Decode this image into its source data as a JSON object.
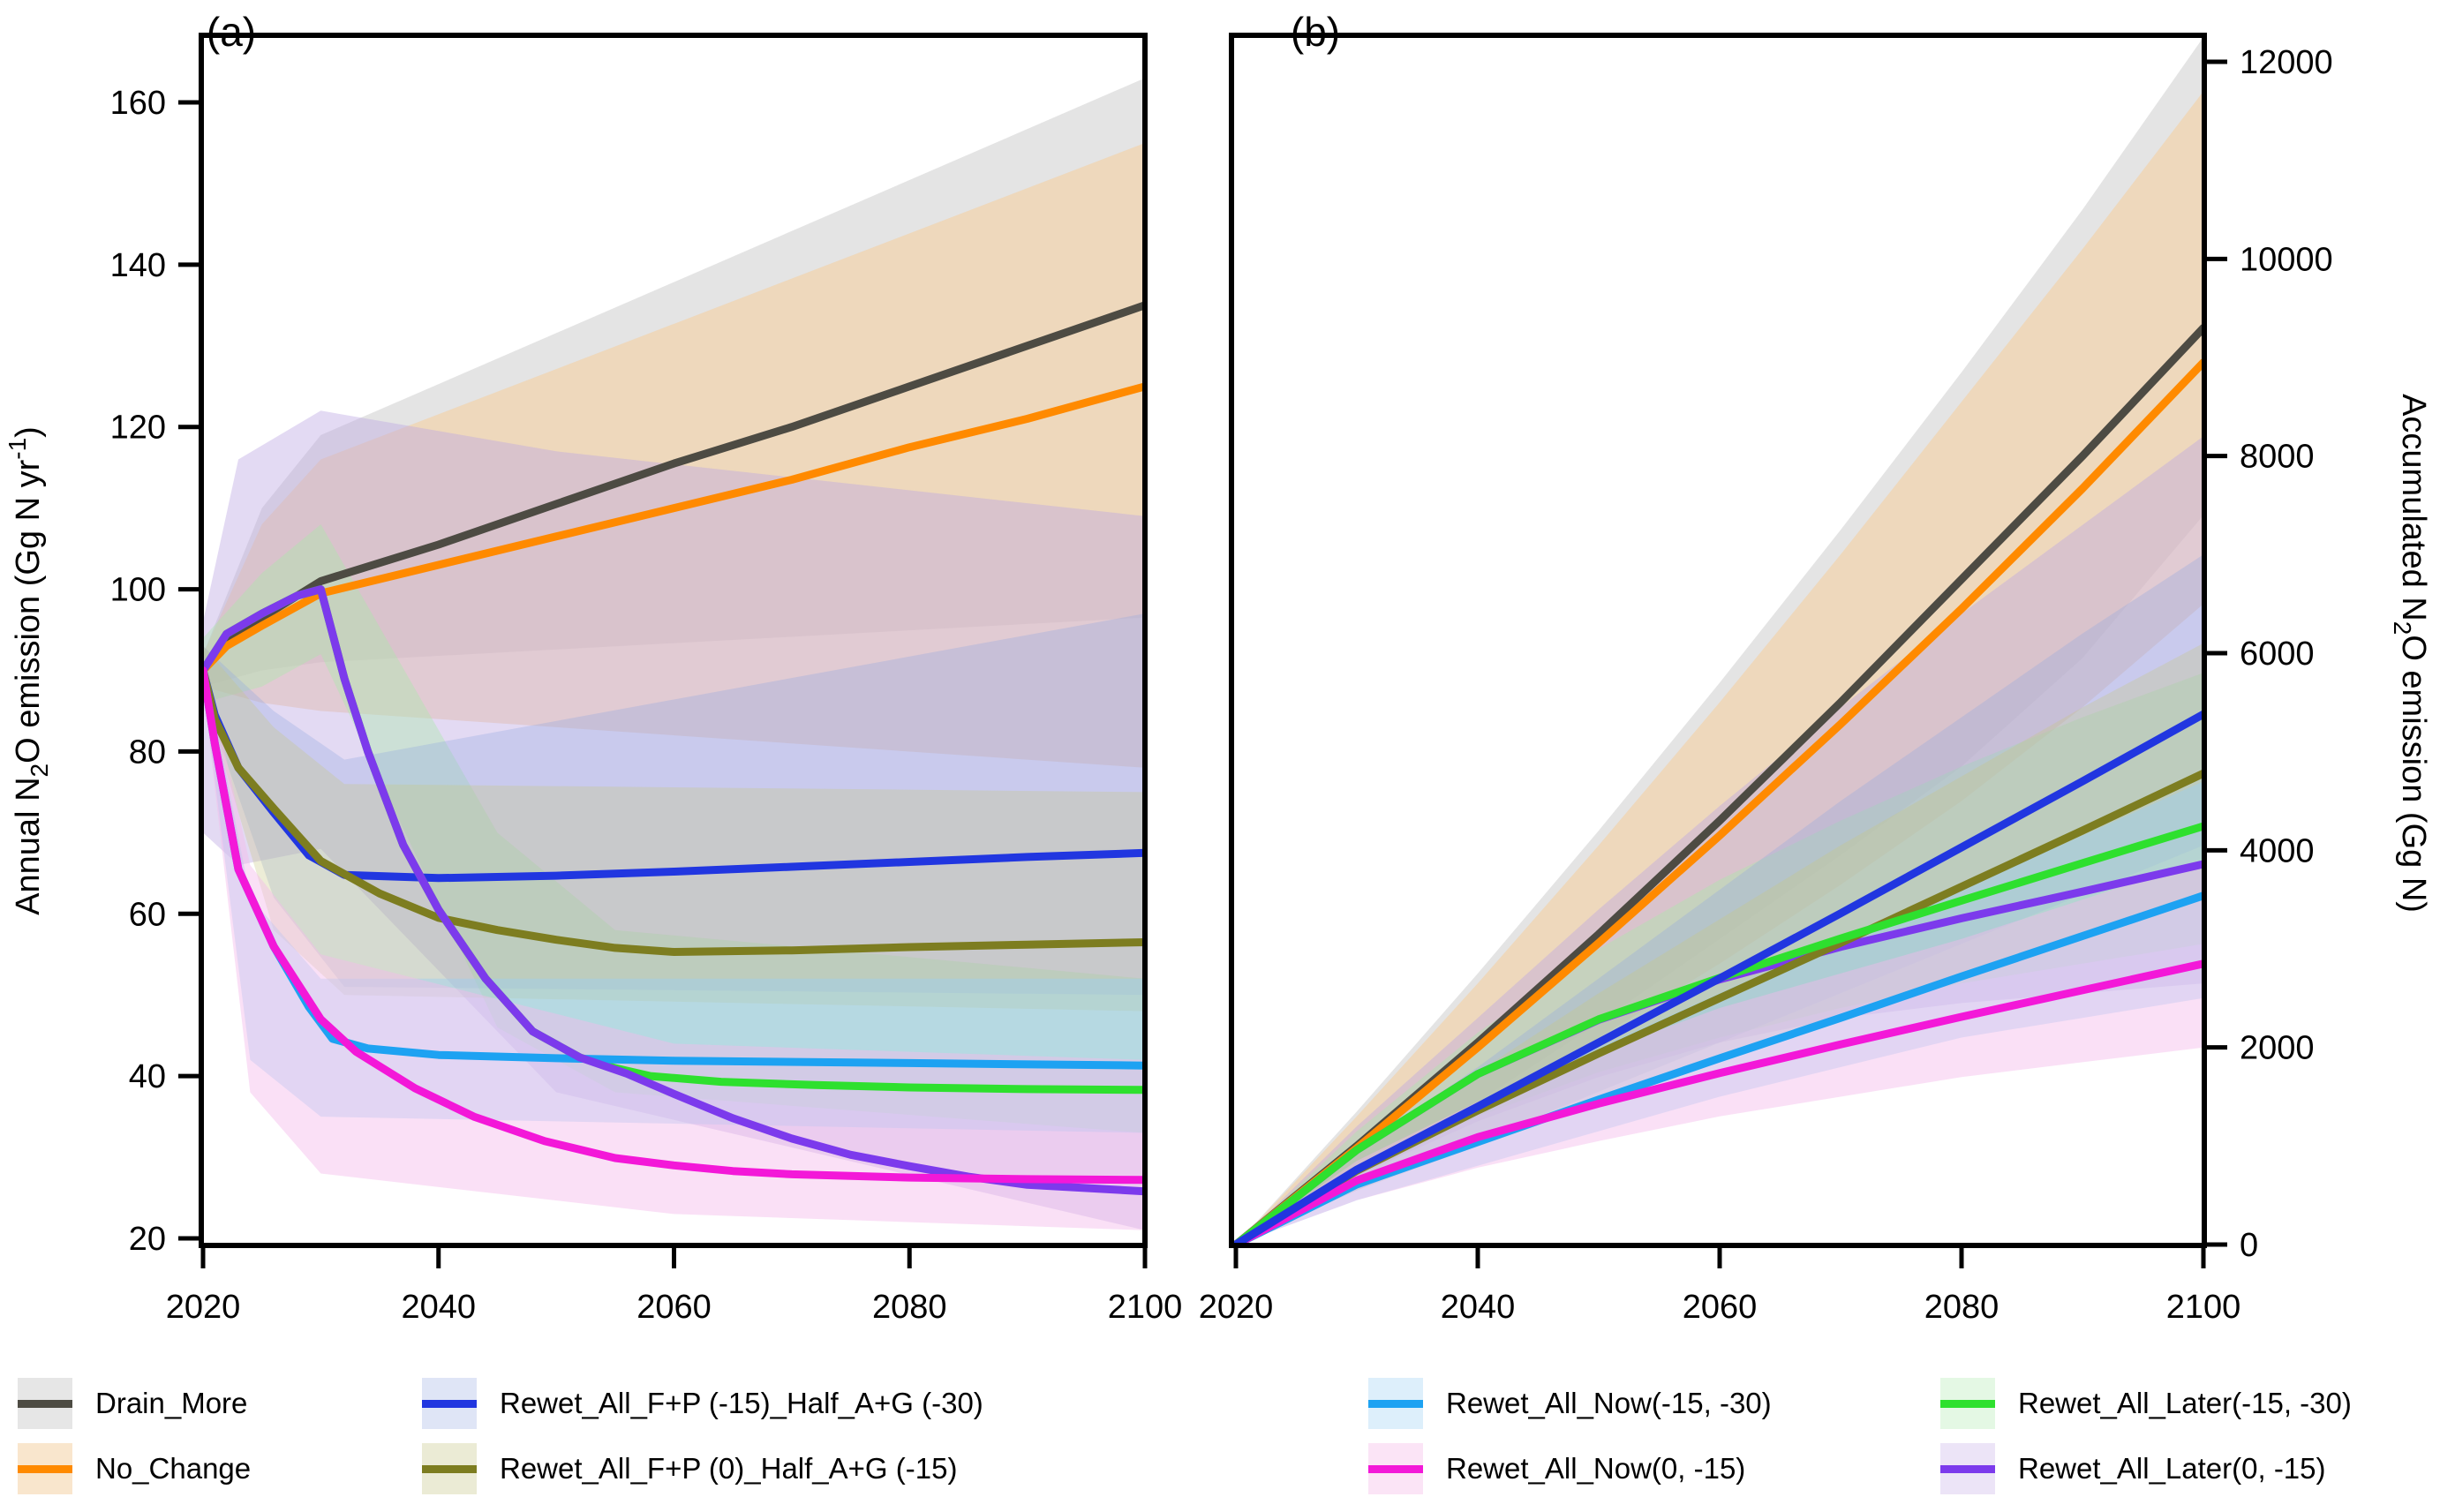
{
  "scenarios": {
    "drain_more": {
      "label": "Drain_More",
      "color": "#4d4b43",
      "band": "rgba(185,185,185,0.38)",
      "legend_band": "#e6e6e6"
    },
    "no_change": {
      "label": "No_Change",
      "color": "#ff8a00",
      "band": "rgba(247,203,147,0.50)",
      "legend_band": "#f9e6cd"
    },
    "fp15": {
      "label": "Rewet_All_F+P (-15)_Half_A+G (-30)",
      "color": "#2136e0",
      "band": "rgba(145,168,224,0.32)",
      "legend_band": "#dfe5f6"
    },
    "fp0": {
      "label": "Rewet_All_F+P (0)_Half_A+G (-15)",
      "color": "#7d7d20",
      "band": "rgba(198,198,132,0.32)",
      "legend_band": "#ebebd5"
    },
    "now1530": {
      "label": "Rewet_All_Now(-15, -30)",
      "color": "#1da2f2",
      "band": "rgba(152,208,242,0.42)",
      "legend_band": "#ddeffb"
    },
    "now015": {
      "label": "Rewet_All_Now(0, -15)",
      "color": "#f318d8",
      "band": "rgba(243,186,234,0.45)",
      "legend_band": "#fbe4f6"
    },
    "later1530": {
      "label": "Rewet_All_Later(-15, -30)",
      "color": "#2ee02e",
      "band": "rgba(168,234,168,0.38)",
      "legend_band": "#e4f8e4"
    },
    "later015": {
      "label": "Rewet_All_Later(0, -15)",
      "color": "#7c3aec",
      "band": "rgba(188,168,226,0.42)",
      "legend_band": "#ece4f7"
    }
  },
  "legend": {
    "order": [
      "drain_more",
      "fp15",
      "now1530",
      "later1530",
      "no_change",
      "fp0",
      "now015",
      "later015"
    ]
  },
  "chart_data": [
    {
      "id": "a",
      "type": "line",
      "title": "(a)",
      "ylabel": "Annual N2O emission (Gg N yr-1)",
      "ylabel_segments": [
        {
          "t": "Annual N"
        },
        {
          "t": "2",
          "s": "sub"
        },
        {
          "t": "O emission (Gg N yr"
        },
        {
          "t": "-1",
          "s": "sup"
        },
        {
          "t": ")"
        }
      ],
      "xlim": [
        2020,
        2100
      ],
      "ylim": [
        20,
        160
      ],
      "xticks": [
        2020,
        2040,
        2060,
        2080,
        2100
      ],
      "yticks": [
        20,
        40,
        60,
        80,
        100,
        120,
        140,
        160
      ],
      "yaxis_side": "left",
      "grid": false,
      "band_order": [
        "drain_more",
        "no_change",
        "later015",
        "later1530",
        "fp15",
        "fp0",
        "now1530",
        "now015"
      ],
      "line_order": [
        "drain_more",
        "no_change",
        "fp15",
        "fp0",
        "later1530",
        "now1530",
        "later015",
        "now015"
      ],
      "bands": {
        "drain_more": {
          "x": [
            2020,
            2025,
            2030,
            2100
          ],
          "upper": [
            92,
            110,
            119,
            163
          ],
          "lower": [
            88,
            90,
            91,
            96.5
          ]
        },
        "no_change": {
          "x": [
            2020,
            2025,
            2030,
            2100
          ],
          "upper": [
            92,
            108,
            116,
            155
          ],
          "lower": [
            88,
            86,
            85,
            78
          ]
        },
        "later015": {
          "x": [
            2020,
            2023,
            2030,
            2050,
            2100
          ],
          "upper": [
            96,
            116,
            122,
            117,
            109
          ],
          "lower": [
            70,
            66,
            68,
            38,
            21
          ]
        },
        "later1530": {
          "x": [
            2020,
            2025,
            2030,
            2045,
            2055,
            2100
          ],
          "upper": [
            94,
            102,
            108,
            70,
            58,
            52
          ],
          "lower": [
            86,
            88,
            92,
            46,
            38,
            33
          ]
        },
        "fp15": {
          "x": [
            2020,
            2026,
            2032,
            2100
          ],
          "upper": [
            93,
            85,
            79,
            97
          ],
          "lower": [
            87,
            62,
            51,
            50
          ]
        },
        "fp0": {
          "x": [
            2020,
            2026,
            2032,
            2100
          ],
          "upper": [
            93,
            83,
            76,
            75
          ],
          "lower": [
            87,
            58,
            50,
            48
          ]
        },
        "now1530": {
          "x": [
            2020,
            2024,
            2030,
            2100
          ],
          "upper": [
            92,
            62,
            52,
            52
          ],
          "lower": [
            88,
            42,
            35,
            33
          ]
        },
        "now015": {
          "x": [
            2020,
            2024,
            2030,
            2060,
            2100
          ],
          "upper": [
            92,
            66,
            55,
            44,
            42
          ],
          "lower": [
            88,
            38,
            28,
            23,
            21
          ]
        }
      },
      "series": {
        "drain_more": {
          "x": [
            2020,
            2022,
            2025,
            2030,
            2040,
            2050,
            2060,
            2070,
            2080,
            2090,
            2100
          ],
          "y": [
            90,
            93.5,
            96.5,
            101,
            105.5,
            110.5,
            115.5,
            120,
            125,
            130,
            135
          ]
        },
        "no_change": {
          "x": [
            2020,
            2022,
            2025,
            2030,
            2040,
            2050,
            2060,
            2070,
            2080,
            2090,
            2100
          ],
          "y": [
            90,
            93,
            95.5,
            99.5,
            103,
            106.5,
            110,
            113.5,
            117.5,
            121,
            125
          ]
        },
        "fp15": {
          "x": [
            2020,
            2021,
            2023,
            2026,
            2029,
            2032,
            2040,
            2050,
            2060,
            2070,
            2080,
            2090,
            2100
          ],
          "y": [
            90,
            84.5,
            78,
            72.5,
            67.2,
            64.8,
            64.4,
            64.7,
            65.2,
            65.8,
            66.4,
            67,
            67.5
          ]
        },
        "fp0": {
          "x": [
            2020,
            2021,
            2023,
            2026,
            2030,
            2035,
            2040,
            2045,
            2050,
            2055,
            2060,
            2070,
            2080,
            2090,
            2100
          ],
          "y": [
            90,
            84,
            78,
            73,
            66.5,
            62.5,
            59.5,
            58,
            56.8,
            55.8,
            55.3,
            55.5,
            55.9,
            56.2,
            56.5
          ]
        },
        "now1530": {
          "x": [
            2020,
            2021,
            2023,
            2026,
            2029,
            2031,
            2034,
            2040,
            2050,
            2060,
            2080,
            2100
          ],
          "y": [
            90,
            81,
            65.5,
            56,
            48.5,
            44.6,
            43.4,
            42.6,
            42.2,
            41.9,
            41.6,
            41.3
          ]
        },
        "now015": {
          "x": [
            2020,
            2021,
            2023,
            2026,
            2030,
            2033,
            2038,
            2043,
            2049,
            2055,
            2060,
            2065,
            2070,
            2080,
            2090,
            2100
          ],
          "y": [
            90,
            81,
            65.5,
            56,
            47,
            43,
            38.5,
            35,
            32,
            29.9,
            29,
            28.3,
            27.9,
            27.5,
            27.3,
            27.2
          ]
        },
        "later1530": {
          "x": [
            2020,
            2022,
            2025,
            2028,
            2030,
            2032,
            2034,
            2037,
            2040,
            2044,
            2048,
            2052,
            2055,
            2058,
            2064,
            2072,
            2080,
            2090,
            2100
          ],
          "y": [
            90,
            94.5,
            97,
            99.2,
            100,
            89,
            80,
            68.5,
            60.5,
            52,
            45.5,
            42.3,
            41,
            40,
            39.3,
            38.9,
            38.6,
            38.4,
            38.3
          ]
        },
        "later015": {
          "x": [
            2020,
            2022,
            2025,
            2028,
            2030,
            2032,
            2034,
            2037,
            2040,
            2044,
            2048,
            2052,
            2056,
            2060,
            2065,
            2070,
            2075,
            2080,
            2085,
            2090,
            2100
          ],
          "y": [
            90,
            94.5,
            97,
            99.2,
            100,
            89,
            80,
            68.5,
            60.5,
            52,
            45.5,
            42.3,
            40.3,
            37.8,
            34.8,
            32.3,
            30.3,
            28.9,
            27.6,
            26.6,
            25.8
          ]
        }
      }
    },
    {
      "id": "b",
      "type": "line",
      "title": "(b)",
      "ylabel": "Accumulated N2O emission (Gg N)",
      "ylabel_segments": [
        {
          "t": "Accumulated N"
        },
        {
          "t": "2",
          "s": "sub"
        },
        {
          "t": "O emission (Gg N)"
        }
      ],
      "xlim": [
        2020,
        2100
      ],
      "ylim": [
        0,
        12000
      ],
      "xticks": [
        2020,
        2040,
        2060,
        2080,
        2100
      ],
      "yticks": [
        0,
        2000,
        4000,
        6000,
        8000,
        10000,
        12000
      ],
      "yaxis_side": "right",
      "grid": false,
      "band_order": [
        "drain_more",
        "no_change",
        "later015",
        "later1530",
        "fp15",
        "fp0",
        "now1530",
        "now015"
      ],
      "line_order": [
        "drain_more",
        "no_change",
        "later015",
        "fp0",
        "later1530",
        "now1530",
        "now015",
        "fp15"
      ],
      "bands": {
        "drain_more": {
          "x": [
            2020,
            2030,
            2040,
            2050,
            2060,
            2070,
            2080,
            2090,
            2100
          ],
          "upper": [
            0,
            1350,
            2750,
            4200,
            5700,
            7250,
            8850,
            10500,
            12250
          ],
          "lower": [
            0,
            700,
            1450,
            2250,
            3100,
            3950,
            4850,
            5950,
            7400
          ]
        },
        "no_change": {
          "x": [
            2020,
            2030,
            2040,
            2050,
            2060,
            2070,
            2080,
            2090,
            2100
          ],
          "upper": [
            0,
            1300,
            2650,
            4050,
            5500,
            7000,
            8550,
            10100,
            11700
          ],
          "lower": [
            0,
            650,
            1350,
            2100,
            2850,
            3650,
            4500,
            5450,
            6500
          ]
        },
        "later015": {
          "x": [
            2020,
            2030,
            2040,
            2050,
            2060,
            2070,
            2080,
            2090,
            2100
          ],
          "upper": [
            0,
            1200,
            2300,
            3400,
            4450,
            5450,
            6400,
            7300,
            8200
          ],
          "lower": [
            0,
            700,
            1250,
            1700,
            2050,
            2300,
            2450,
            2550,
            2650
          ]
        },
        "later1530": {
          "x": [
            2020,
            2030,
            2040,
            2050,
            2060,
            2070,
            2080,
            2090,
            2100
          ],
          "upper": [
            0,
            1150,
            2150,
            3000,
            3700,
            4300,
            4850,
            5350,
            5800
          ],
          "lower": [
            0,
            700,
            1300,
            1750,
            2100,
            2400,
            2650,
            2850,
            3050
          ]
        },
        "fp15": {
          "x": [
            2020,
            2030,
            2040,
            2050,
            2060,
            2070,
            2080,
            2090,
            2100
          ],
          "upper": [
            0,
            950,
            1800,
            2700,
            3600,
            4500,
            5350,
            6200,
            7000
          ],
          "lower": [
            0,
            550,
            1050,
            1550,
            2050,
            2550,
            3050,
            3550,
            4050
          ]
        },
        "fp0": {
          "x": [
            2020,
            2030,
            2040,
            2050,
            2060,
            2070,
            2080,
            2090,
            2100
          ],
          "upper": [
            0,
            950,
            1750,
            2550,
            3300,
            4050,
            4750,
            5450,
            6100
          ],
          "lower": [
            0,
            550,
            1000,
            1450,
            1900,
            2350,
            2750,
            3150,
            3550
          ]
        },
        "now1530": {
          "x": [
            2020,
            2030,
            2040,
            2050,
            2060,
            2070,
            2080,
            2090,
            2100
          ],
          "upper": [
            0,
            800,
            1400,
            2000,
            2550,
            3100,
            3600,
            4150,
            4700
          ],
          "lower": [
            0,
            450,
            800,
            1150,
            1500,
            1800,
            2100,
            2300,
            2500
          ]
        },
        "now015": {
          "x": [
            2020,
            2030,
            2040,
            2050,
            2060,
            2070,
            2080,
            2090,
            2100
          ],
          "upper": [
            0,
            850,
            1450,
            1950,
            2400,
            2750,
            3100,
            3500,
            3900
          ],
          "lower": [
            0,
            450,
            780,
            1050,
            1300,
            1500,
            1700,
            1850,
            2000
          ]
        }
      },
      "series": {
        "drain_more": {
          "x": [
            2020,
            2030,
            2040,
            2050,
            2060,
            2070,
            2080,
            2090,
            2100
          ],
          "y": [
            0,
            1000,
            2050,
            3150,
            4300,
            5500,
            6750,
            8000,
            9300
          ]
        },
        "no_change": {
          "x": [
            2020,
            2030,
            2040,
            2050,
            2060,
            2070,
            2080,
            2090,
            2100
          ],
          "y": [
            0,
            980,
            2000,
            3060,
            4150,
            5280,
            6450,
            7670,
            8950
          ]
        },
        "fp15": {
          "x": [
            2020,
            2030,
            2040,
            2050,
            2060,
            2070,
            2080,
            2090,
            2100
          ],
          "y": [
            0,
            760,
            1400,
            2050,
            2700,
            3360,
            4030,
            4700,
            5380
          ]
        },
        "fp0": {
          "x": [
            2020,
            2030,
            2040,
            2050,
            2060,
            2070,
            2080,
            2090,
            2100
          ],
          "y": [
            0,
            750,
            1360,
            1940,
            2500,
            3060,
            3630,
            4200,
            4780
          ]
        },
        "later1530": {
          "x": [
            2020,
            2030,
            2040,
            2050,
            2060,
            2070,
            2080,
            2090,
            2100
          ],
          "y": [
            0,
            960,
            1730,
            2285,
            2705,
            3105,
            3490,
            3870,
            4245
          ]
        },
        "later015": {
          "x": [
            2020,
            2030,
            2040,
            2050,
            2060,
            2070,
            2080,
            2090,
            2100
          ],
          "y": [
            0,
            960,
            1730,
            2280,
            2690,
            3020,
            3310,
            3580,
            3860
          ]
        },
        "now1530": {
          "x": [
            2020,
            2030,
            2040,
            2050,
            2060,
            2070,
            2080,
            2090,
            2100
          ],
          "y": [
            0,
            610,
            1040,
            1470,
            1890,
            2300,
            2720,
            3130,
            3540
          ]
        },
        "now015": {
          "x": [
            2020,
            2030,
            2040,
            2050,
            2060,
            2070,
            2080,
            2090,
            2100
          ],
          "y": [
            0,
            650,
            1090,
            1430,
            1740,
            2030,
            2310,
            2580,
            2850
          ]
        }
      }
    }
  ]
}
